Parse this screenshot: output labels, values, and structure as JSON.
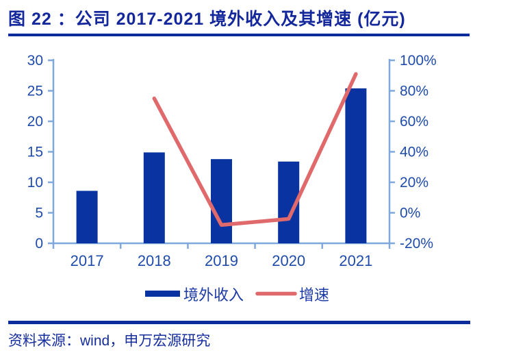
{
  "header": {
    "title": "图 22 ：公司 2017-2021 境外收入及其增速 (亿元)"
  },
  "footer": {
    "source": "资料来源：wind，申万宏源研究"
  },
  "colors": {
    "title_navy": "#14289C",
    "rule_navy": "#0A2C9C",
    "bar_blue": "#0833A0",
    "line_red": "#E0696B",
    "axis_light_blue": "#7FA8DC",
    "tick_label_blue": "#1F4BAB",
    "legend_label_blue": "#1C3BA6"
  },
  "chart_data": {
    "type": "bar+line combo",
    "title": "公司 2017-2021 境外收入及其增速 (亿元)",
    "categories": [
      "2017",
      "2018",
      "2019",
      "2020",
      "2021"
    ],
    "series": [
      {
        "name": "境外收入",
        "type": "bar",
        "axis": "left",
        "unit": "亿元",
        "values": [
          8.6,
          14.9,
          13.8,
          13.4,
          25.4
        ]
      },
      {
        "name": "增速",
        "type": "line",
        "axis": "right",
        "unit": "%",
        "values": [
          null,
          75,
          -8,
          -4,
          91
        ]
      }
    ],
    "left_axis": {
      "min": 0,
      "max": 30,
      "ticks": [
        0,
        5,
        10,
        15,
        20,
        25,
        30
      ],
      "suffix": ""
    },
    "right_axis": {
      "min": -20,
      "max": 100,
      "ticks": [
        -20,
        0,
        20,
        40,
        60,
        80,
        100
      ],
      "suffix": "%"
    },
    "grid": "off",
    "legend_position": "bottom"
  }
}
